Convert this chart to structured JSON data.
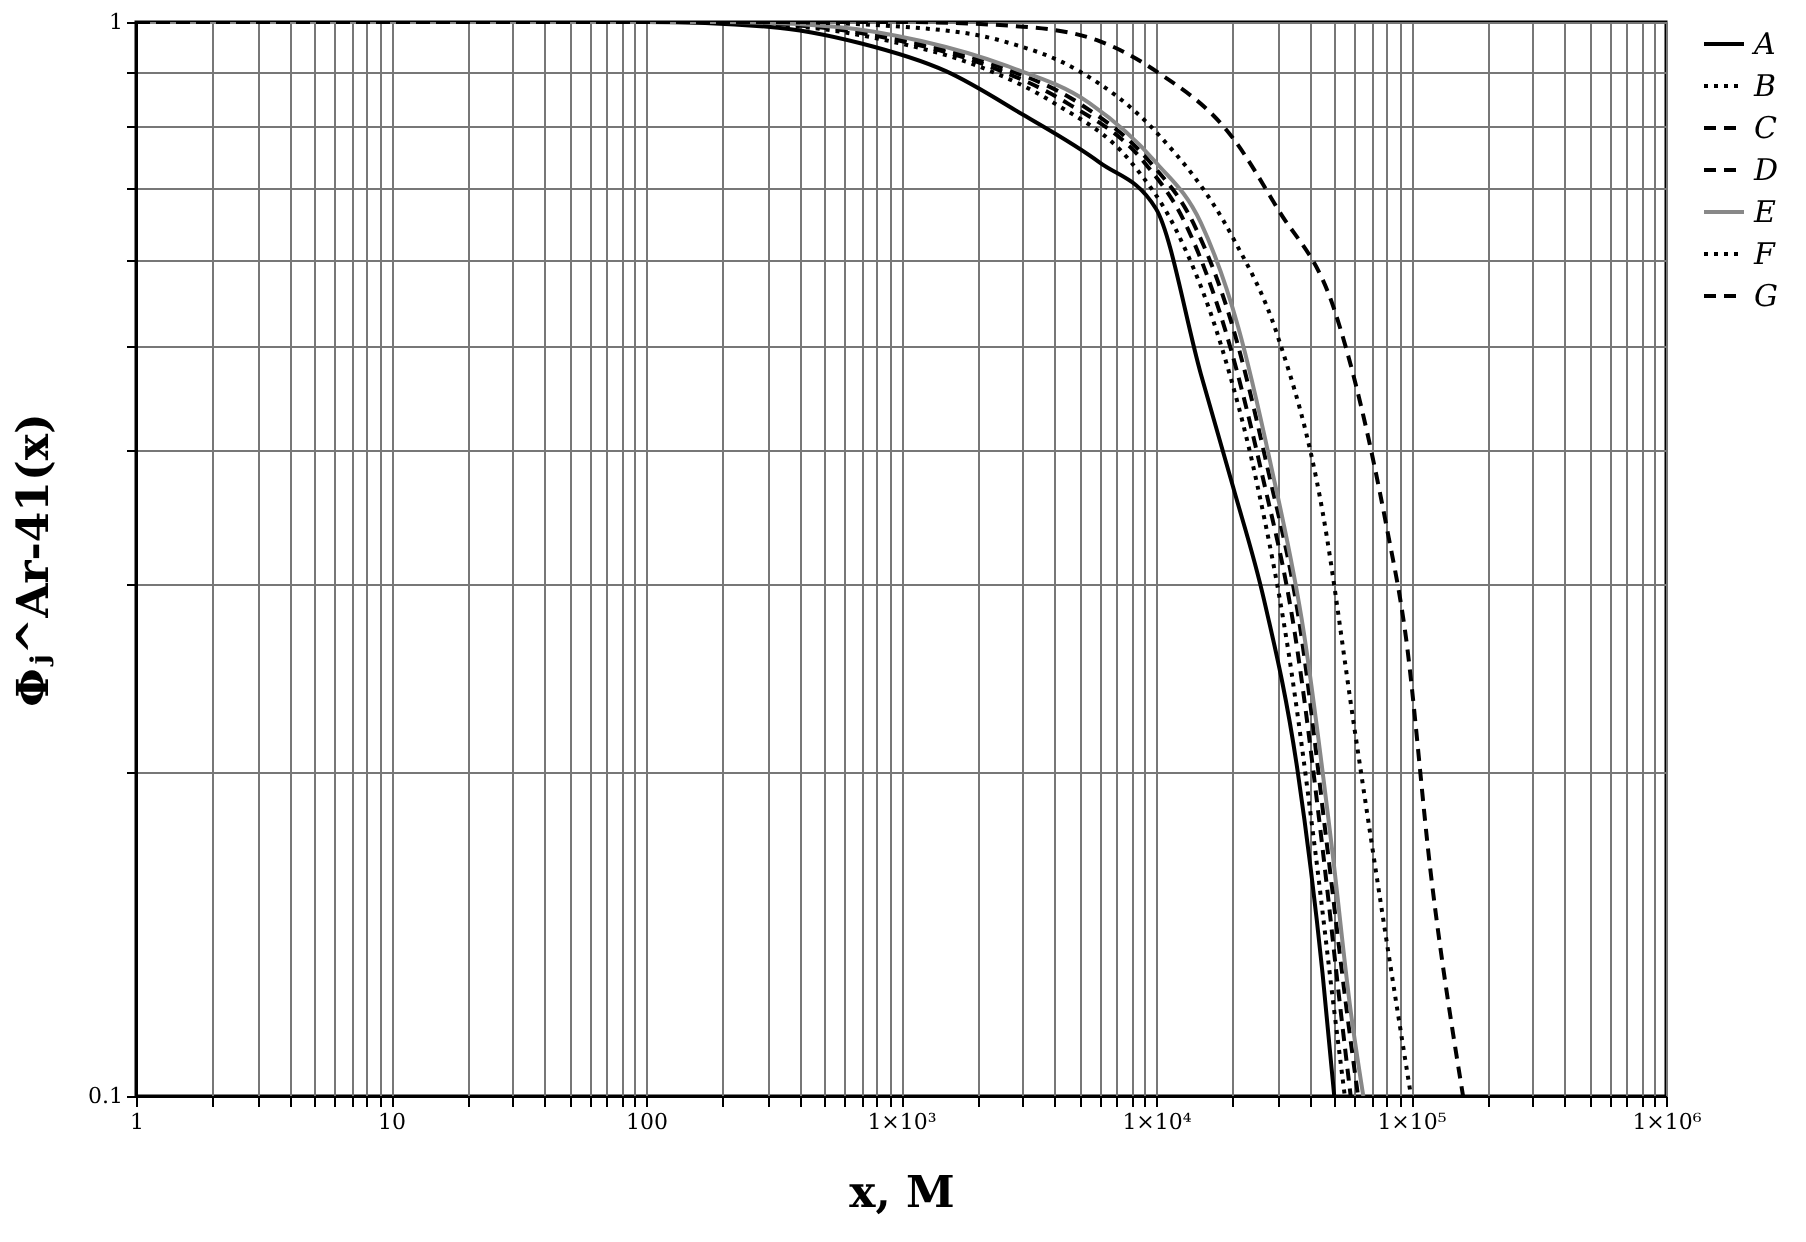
{
  "chart_data": {
    "type": "line",
    "xlabel": "x, M",
    "ylabel": "Φⱼ^Ar-41(x)",
    "log": "xy",
    "grid": true,
    "legend": "right",
    "xlim": [
      1,
      1000000
    ],
    "ylim": [
      0.1,
      1
    ],
    "xticks": [
      1,
      {
        "value": 2,
        "label": null
      },
      {
        "value": 3,
        "label": null
      },
      {
        "value": 4,
        "label": null
      },
      {
        "value": 5,
        "label": null
      },
      {
        "value": 6,
        "label": null
      },
      {
        "value": 7,
        "label": null
      },
      {
        "value": 8,
        "label": null
      },
      {
        "value": 9,
        "label": null
      },
      10,
      {
        "value": 20,
        "label": null
      },
      {
        "value": 30,
        "label": null
      },
      {
        "value": 40,
        "label": null
      },
      {
        "value": 50,
        "label": null
      },
      {
        "value": 60,
        "label": null
      },
      {
        "value": 70,
        "label": null
      },
      {
        "value": 80,
        "label": null
      },
      {
        "value": 90,
        "label": null
      },
      100,
      {
        "value": 200,
        "label": null
      },
      {
        "value": 300,
        "label": null
      },
      {
        "value": 400,
        "label": null
      },
      {
        "value": 500,
        "label": null
      },
      {
        "value": 600,
        "label": null
      },
      {
        "value": 700,
        "label": null
      },
      {
        "value": 800,
        "label": null
      },
      {
        "value": 900,
        "label": null
      },
      {
        "value": 1000,
        "label": "1×10³"
      },
      {
        "value": 2000,
        "label": null
      },
      {
        "value": 3000,
        "label": null
      },
      {
        "value": 4000,
        "label": null
      },
      {
        "value": 5000,
        "label": null
      },
      {
        "value": 6000,
        "label": null
      },
      {
        "value": 7000,
        "label": null
      },
      {
        "value": 8000,
        "label": null
      },
      {
        "value": 9000,
        "label": null
      },
      {
        "value": 10000,
        "label": "1×10⁴"
      },
      {
        "value": 20000,
        "label": null
      },
      {
        "value": 30000,
        "label": null
      },
      {
        "value": 40000,
        "label": null
      },
      {
        "value": 50000,
        "label": null
      },
      {
        "value": 60000,
        "label": null
      },
      {
        "value": 70000,
        "label": null
      },
      {
        "value": 80000,
        "label": null
      },
      {
        "value": 90000,
        "label": null
      },
      {
        "value": 100000,
        "label": "1×10⁵"
      },
      {
        "value": 200000,
        "label": null
      },
      {
        "value": 300000,
        "label": null
      },
      {
        "value": 400000,
        "label": null
      },
      {
        "value": 500000,
        "label": null
      },
      {
        "value": 600000,
        "label": null
      },
      {
        "value": 700000,
        "label": null
      },
      {
        "value": 800000,
        "label": null
      },
      {
        "value": 900000,
        "label": null
      },
      {
        "value": 1000000,
        "label": "1×10⁶"
      }
    ],
    "yticks": [
      0.1,
      {
        "value": 0.2,
        "label": null
      },
      {
        "value": 0.3,
        "label": null
      },
      {
        "value": 0.4,
        "label": null
      },
      {
        "value": 0.5,
        "label": null
      },
      {
        "value": 0.6,
        "label": null
      },
      {
        "value": 0.7,
        "label": null
      },
      {
        "value": 0.8,
        "label": null
      },
      {
        "value": 0.9,
        "label": null
      },
      1
    ],
    "series": [
      {
        "name": "A",
        "color": "#000000",
        "line_style": "solid",
        "x": [
          1,
          100,
          300,
          700,
          1500,
          3000,
          6000,
          10000,
          15000,
          20000,
          26500,
          36000,
          45000,
          50000
        ],
        "values": [
          1,
          1,
          0.99,
          0.955,
          0.9,
          0.82,
          0.74,
          0.67,
          0.47,
          0.37,
          0.29,
          0.2,
          0.13,
          0.1
        ]
      },
      {
        "name": "B",
        "color": "#000000",
        "line_style": "dotted",
        "x": [
          1,
          150,
          400,
          900,
          2000,
          4000,
          8000,
          12000,
          18000,
          25000,
          33000,
          42000,
          50000,
          55000
        ],
        "values": [
          1,
          1,
          0.99,
          0.96,
          0.91,
          0.84,
          0.74,
          0.64,
          0.5,
          0.37,
          0.26,
          0.17,
          0.12,
          0.1
        ]
      },
      {
        "name": "C",
        "color": "#000000",
        "line_style": "dashed",
        "x": [
          1,
          170,
          450,
          1000,
          2200,
          4500,
          9000,
          13000,
          19000,
          26000,
          35000,
          45000,
          53000,
          58000
        ],
        "values": [
          1,
          1,
          0.99,
          0.96,
          0.91,
          0.84,
          0.74,
          0.65,
          0.51,
          0.38,
          0.27,
          0.17,
          0.12,
          0.1
        ]
      },
      {
        "name": "D",
        "color": "#000000",
        "line_style": "dashed",
        "x": [
          1,
          180,
          500,
          1100,
          2400,
          5000,
          9500,
          14000,
          20000,
          27000,
          37000,
          47000,
          56000,
          62000
        ],
        "values": [
          1,
          1,
          0.99,
          0.96,
          0.91,
          0.84,
          0.74,
          0.65,
          0.52,
          0.39,
          0.27,
          0.17,
          0.12,
          0.1
        ]
      },
      {
        "name": "E",
        "color": "#888888",
        "line_style": "solid",
        "x": [
          1,
          200,
          550,
          1200,
          2600,
          5500,
          10000,
          15000,
          21000,
          28000,
          38000,
          49000,
          58000,
          65000
        ],
        "values": [
          1,
          1,
          0.99,
          0.96,
          0.91,
          0.84,
          0.74,
          0.65,
          0.52,
          0.39,
          0.27,
          0.17,
          0.12,
          0.1
        ]
      },
      {
        "name": "F",
        "color": "#000000",
        "line_style": "dotted",
        "x": [
          1,
          300,
          1000,
          2500,
          5000,
          10000,
          20000,
          30000,
          45000,
          60000,
          80000,
          100000
        ],
        "values": [
          1,
          1,
          0.99,
          0.96,
          0.9,
          0.79,
          0.63,
          0.51,
          0.35,
          0.22,
          0.14,
          0.1
        ]
      },
      {
        "name": "G",
        "color": "#000000",
        "line_style": "dashed",
        "x": [
          1,
          1000,
          3000,
          6000,
          10000,
          20000,
          30000,
          50000,
          80000,
          95000,
          120000,
          160000
        ],
        "values": [
          1,
          1,
          0.99,
          0.96,
          0.9,
          0.78,
          0.67,
          0.54,
          0.34,
          0.27,
          0.16,
          0.1
        ]
      }
    ]
  }
}
